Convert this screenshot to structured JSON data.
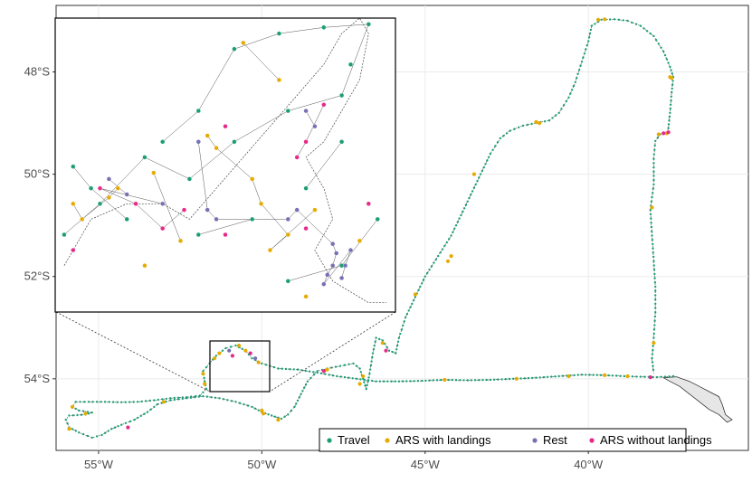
{
  "map": {
    "x_ticks": [
      {
        "label": "55°W",
        "lon": -55
      },
      {
        "label": "50°W",
        "lon": -50
      },
      {
        "label": "45°W",
        "lon": -45
      },
      {
        "label": "40°W",
        "lon": -40
      }
    ],
    "y_ticks": [
      {
        "label": "48°S",
        "lat": -48
      },
      {
        "label": "50°S",
        "lat": -50
      },
      {
        "label": "52°S",
        "lat": -52
      },
      {
        "label": "54°S",
        "lat": -54
      }
    ],
    "extent": {
      "lon_min": -56.3,
      "lon_max": -35.1,
      "lat_min": -55.4,
      "lat_max": -46.7
    },
    "colors": {
      "travel": "#1b9e77",
      "ars_landings": "#e6ab02",
      "rest": "#7570b3",
      "ars_no_landings": "#e7298a",
      "track_line": "#333333",
      "land_fill": "#e6e6e6",
      "grid": "#ebebeb"
    },
    "legend": [
      {
        "key": "travel",
        "label": "Travel"
      },
      {
        "key": "ars_landings",
        "label": "ARS with landings"
      },
      {
        "key": "rest",
        "label": "Rest"
      },
      {
        "key": "ars_no_landings",
        "label": "ARS without landings"
      }
    ],
    "inset_extent": {
      "lon_min": -51.6,
      "lon_max": -49.7,
      "lat_min": -53.85,
      "lat_max": -52.9
    },
    "track": [
      [
        -37.4,
        -53.95
      ],
      [
        -37.9,
        -53.97
      ],
      [
        -38.4,
        -53.96
      ],
      [
        -38.9,
        -53.95
      ],
      [
        -39.5,
        -53.93
      ],
      [
        -40.2,
        -53.92
      ],
      [
        -40.9,
        -53.95
      ],
      [
        -41.6,
        -53.98
      ],
      [
        -42.3,
        -54.0
      ],
      [
        -43.0,
        -54.02
      ],
      [
        -43.7,
        -54.03
      ],
      [
        -44.4,
        -54.02
      ],
      [
        -45.1,
        -54.04
      ],
      [
        -45.8,
        -54.05
      ],
      [
        -46.5,
        -54.05
      ],
      [
        -47.1,
        -54.0
      ],
      [
        -47.7,
        -53.95
      ],
      [
        -48.3,
        -53.88
      ],
      [
        -48.9,
        -53.82
      ],
      [
        -49.5,
        -53.8
      ],
      [
        -50.0,
        -53.7
      ],
      [
        -50.3,
        -53.6
      ],
      [
        -50.5,
        -53.45
      ],
      [
        -50.8,
        -53.35
      ],
      [
        -51.1,
        -53.4
      ],
      [
        -51.4,
        -53.55
      ],
      [
        -51.6,
        -53.7
      ],
      [
        -51.8,
        -53.85
      ],
      [
        -51.75,
        -54.05
      ],
      [
        -51.7,
        -54.2
      ],
      [
        -51.9,
        -54.33
      ],
      [
        -52.3,
        -54.36
      ],
      [
        -52.8,
        -54.38
      ],
      [
        -53.3,
        -54.42
      ],
      [
        -53.8,
        -54.45
      ],
      [
        -54.3,
        -54.46
      ],
      [
        -54.8,
        -54.45
      ],
      [
        -55.3,
        -54.45
      ],
      [
        -55.7,
        -54.45
      ],
      [
        -55.8,
        -54.55
      ],
      [
        -55.6,
        -54.62
      ],
      [
        -55.2,
        -54.66
      ],
      [
        -55.4,
        -54.7
      ],
      [
        -55.9,
        -54.72
      ],
      [
        -56.0,
        -54.8
      ],
      [
        -55.9,
        -54.95
      ],
      [
        -55.6,
        -55.05
      ],
      [
        -55.2,
        -55.15
      ],
      [
        -54.9,
        -55.1
      ],
      [
        -54.6,
        -54.98
      ],
      [
        -54.3,
        -54.9
      ],
      [
        -53.9,
        -54.8
      ],
      [
        -53.5,
        -54.65
      ],
      [
        -53.2,
        -54.5
      ],
      [
        -52.8,
        -54.42
      ],
      [
        -52.3,
        -54.38
      ],
      [
        -51.8,
        -54.34
      ],
      [
        -51.3,
        -54.38
      ],
      [
        -50.8,
        -54.45
      ],
      [
        -50.3,
        -54.55
      ],
      [
        -50.0,
        -54.65
      ],
      [
        -49.7,
        -54.72
      ],
      [
        -49.4,
        -54.78
      ],
      [
        -49.2,
        -54.7
      ],
      [
        -49.0,
        -54.55
      ],
      [
        -48.8,
        -54.3
      ],
      [
        -48.6,
        -54.05
      ],
      [
        -48.3,
        -53.85
      ],
      [
        -48.0,
        -53.8
      ],
      [
        -47.6,
        -53.75
      ],
      [
        -47.2,
        -53.7
      ],
      [
        -47.0,
        -53.8
      ],
      [
        -46.9,
        -54.0
      ],
      [
        -46.8,
        -54.2
      ],
      [
        -46.7,
        -53.9
      ],
      [
        -46.6,
        -53.5
      ],
      [
        -46.5,
        -53.2
      ],
      [
        -46.3,
        -53.25
      ],
      [
        -46.1,
        -53.45
      ],
      [
        -45.9,
        -53.5
      ],
      [
        -45.8,
        -53.2
      ],
      [
        -45.6,
        -52.8
      ],
      [
        -45.3,
        -52.4
      ],
      [
        -45.0,
        -52.0
      ],
      [
        -44.6,
        -51.6
      ],
      [
        -44.2,
        -51.2
      ],
      [
        -43.9,
        -50.8
      ],
      [
        -43.6,
        -50.4
      ],
      [
        -43.3,
        -50.0
      ],
      [
        -43.0,
        -49.6
      ],
      [
        -42.7,
        -49.3
      ],
      [
        -42.4,
        -49.15
      ],
      [
        -42.0,
        -49.05
      ],
      [
        -41.6,
        -49.0
      ],
      [
        -41.2,
        -48.95
      ],
      [
        -40.9,
        -48.8
      ],
      [
        -40.6,
        -48.5
      ],
      [
        -40.4,
        -48.2
      ],
      [
        -40.2,
        -47.8
      ],
      [
        -40.0,
        -47.4
      ],
      [
        -39.9,
        -47.1
      ],
      [
        -39.6,
        -46.98
      ],
      [
        -39.2,
        -46.97
      ],
      [
        -38.8,
        -47.0
      ],
      [
        -38.4,
        -47.1
      ],
      [
        -38.0,
        -47.3
      ],
      [
        -37.7,
        -47.6
      ],
      [
        -37.5,
        -47.9
      ],
      [
        -37.4,
        -48.1
      ],
      [
        -37.45,
        -48.4
      ],
      [
        -37.5,
        -48.8
      ],
      [
        -37.55,
        -49.1
      ],
      [
        -37.6,
        -49.2
      ],
      [
        -37.8,
        -49.22
      ],
      [
        -37.95,
        -49.35
      ],
      [
        -38.0,
        -49.7
      ],
      [
        -38.0,
        -50.2
      ],
      [
        -38.1,
        -50.7
      ],
      [
        -38.05,
        -51.2
      ],
      [
        -38.0,
        -51.7
      ],
      [
        -37.95,
        -52.2
      ],
      [
        -37.95,
        -52.7
      ],
      [
        -38.0,
        -53.2
      ],
      [
        -38.05,
        -53.6
      ],
      [
        -38.0,
        -53.9
      ]
    ],
    "events": [
      {
        "cls": "ars_landings",
        "lon": -39.7,
        "lat": -46.98
      },
      {
        "cls": "ars_landings",
        "lon": -39.5,
        "lat": -46.97
      },
      {
        "cls": "ars_landings",
        "lon": -37.5,
        "lat": -48.1
      },
      {
        "cls": "ars_landings",
        "lon": -37.45,
        "lat": -48.12
      },
      {
        "cls": "ars_landings",
        "lon": -37.6,
        "lat": -49.2
      },
      {
        "cls": "ars_no_landings",
        "lon": -37.7,
        "lat": -49.2
      },
      {
        "cls": "ars_landings",
        "lon": -37.85,
        "lat": -49.22
      },
      {
        "cls": "ars_no_landings",
        "lon": -37.55,
        "lat": -49.18
      },
      {
        "cls": "ars_landings",
        "lon": -38.05,
        "lat": -50.65
      },
      {
        "cls": "ars_landings",
        "lon": -38.0,
        "lat": -53.3
      },
      {
        "cls": "ars_landings",
        "lon": -41.5,
        "lat": -49.0
      },
      {
        "cls": "ars_landings",
        "lon": -41.6,
        "lat": -48.98
      },
      {
        "cls": "ars_landings",
        "lon": -43.5,
        "lat": -50.0
      },
      {
        "cls": "ars_landings",
        "lon": -44.3,
        "lat": -51.7
      },
      {
        "cls": "ars_landings",
        "lon": -44.2,
        "lat": -51.6
      },
      {
        "cls": "ars_landings",
        "lon": -45.3,
        "lat": -52.35
      },
      {
        "cls": "ars_no_landings",
        "lon": -46.2,
        "lat": -53.45
      },
      {
        "cls": "ars_landings",
        "lon": -46.3,
        "lat": -53.3
      },
      {
        "cls": "ars_landings",
        "lon": -46.9,
        "lat": -53.95
      },
      {
        "cls": "ars_landings",
        "lon": -47.0,
        "lat": -54.1
      },
      {
        "cls": "ars_landings",
        "lon": -44.4,
        "lat": -54.02
      },
      {
        "cls": "ars_landings",
        "lon": -42.2,
        "lat": -54.0
      },
      {
        "cls": "ars_landings",
        "lon": -40.6,
        "lat": -53.95
      },
      {
        "cls": "ars_landings",
        "lon": -39.5,
        "lat": -53.93
      },
      {
        "cls": "ars_landings",
        "lon": -38.8,
        "lat": -53.95
      },
      {
        "cls": "ars_no_landings",
        "lon": -38.1,
        "lat": -53.97
      },
      {
        "cls": "ars_no_landings",
        "lon": -48.1,
        "lat": -53.85
      },
      {
        "cls": "ars_landings",
        "lon": -48.0,
        "lat": -53.82
      },
      {
        "cls": "ars_landings",
        "lon": -51.8,
        "lat": -53.9
      },
      {
        "cls": "ars_landings",
        "lon": -51.75,
        "lat": -54.1
      },
      {
        "cls": "ars_landings",
        "lon": -50.0,
        "lat": -54.62
      },
      {
        "cls": "ars_landings",
        "lon": -49.95,
        "lat": -54.68
      },
      {
        "cls": "ars_landings",
        "lon": -49.5,
        "lat": -54.8
      },
      {
        "cls": "ars_landings",
        "lon": -53.0,
        "lat": -54.45
      },
      {
        "cls": "ars_landings",
        "lon": -55.4,
        "lat": -54.68
      },
      {
        "cls": "ars_landings",
        "lon": -55.8,
        "lat": -54.55
      },
      {
        "cls": "ars_no_landings",
        "lon": -54.1,
        "lat": -54.95
      },
      {
        "cls": "ars_landings",
        "lon": -55.9,
        "lat": -54.98
      },
      {
        "cls": "ars_landings",
        "lon": -51.3,
        "lat": -53.5
      },
      {
        "cls": "rest",
        "lon": -51.0,
        "lat": -53.45
      },
      {
        "cls": "ars_no_landings",
        "lon": -50.9,
        "lat": -53.55
      },
      {
        "cls": "ars_landings",
        "lon": -50.5,
        "lat": -53.45
      },
      {
        "cls": "ars_no_landings",
        "lon": -50.35,
        "lat": -53.5
      },
      {
        "cls": "rest",
        "lon": -50.2,
        "lat": -53.6
      },
      {
        "cls": "ars_landings",
        "lon": -50.1,
        "lat": -53.68
      },
      {
        "cls": "ars_landings",
        "lon": -50.7,
        "lat": -53.35
      },
      {
        "cls": "ars_landings",
        "lon": -51.45,
        "lat": -53.6
      }
    ],
    "inset_track": [
      [
        -51.55,
        -53.7
      ],
      [
        -51.4,
        -53.55
      ],
      [
        -51.2,
        -53.5
      ],
      [
        -51.0,
        -53.5
      ],
      [
        -50.85,
        -53.55
      ],
      [
        -50.7,
        -53.45
      ],
      [
        -50.55,
        -53.35
      ],
      [
        -50.4,
        -53.25
      ],
      [
        -50.25,
        -53.15
      ],
      [
        -50.1,
        -53.05
      ],
      [
        -50.0,
        -52.95
      ],
      [
        -49.9,
        -52.9
      ],
      [
        -49.85,
        -52.95
      ],
      [
        -49.9,
        -53.1
      ],
      [
        -50.0,
        -53.2
      ],
      [
        -50.1,
        -53.3
      ],
      [
        -50.2,
        -53.35
      ],
      [
        -50.1,
        -53.45
      ],
      [
        -50.05,
        -53.55
      ],
      [
        -50.15,
        -53.65
      ],
      [
        -50.05,
        -53.75
      ],
      [
        -49.85,
        -53.82
      ],
      [
        -49.75,
        -53.82
      ]
    ],
    "inset_events": [
      {
        "cls": "travel",
        "lon": -51.5,
        "lat": -53.38
      },
      {
        "cls": "travel",
        "lon": -51.4,
        "lat": -53.45
      },
      {
        "cls": "travel",
        "lon": -51.2,
        "lat": -53.55
      },
      {
        "cls": "travel",
        "lon": -51.0,
        "lat": -53.3
      },
      {
        "cls": "travel",
        "lon": -50.8,
        "lat": -53.2
      },
      {
        "cls": "travel",
        "lon": -50.6,
        "lat": -53.0
      },
      {
        "cls": "travel",
        "lon": -50.35,
        "lat": -52.95
      },
      {
        "cls": "travel",
        "lon": -50.1,
        "lat": -52.93
      },
      {
        "cls": "travel",
        "lon": -49.85,
        "lat": -52.92
      },
      {
        "cls": "travel",
        "lon": -50.0,
        "lat": -53.15
      },
      {
        "cls": "travel",
        "lon": -50.3,
        "lat": -53.2
      },
      {
        "cls": "travel",
        "lon": -50.6,
        "lat": -53.3
      },
      {
        "cls": "travel",
        "lon": -50.85,
        "lat": -53.42
      },
      {
        "cls": "travel",
        "lon": -51.1,
        "lat": -53.35
      },
      {
        "cls": "travel",
        "lon": -51.35,
        "lat": -53.5
      },
      {
        "cls": "travel",
        "lon": -51.55,
        "lat": -53.6
      },
      {
        "cls": "travel",
        "lon": -50.2,
        "lat": -53.45
      },
      {
        "cls": "travel",
        "lon": -50.0,
        "lat": -53.3
      },
      {
        "cls": "travel",
        "lon": -50.5,
        "lat": -53.55
      },
      {
        "cls": "travel",
        "lon": -50.8,
        "lat": -53.6
      },
      {
        "cls": "travel",
        "lon": -50.3,
        "lat": -53.75
      },
      {
        "cls": "travel",
        "lon": -50.0,
        "lat": -53.7
      },
      {
        "cls": "travel",
        "lon": -49.8,
        "lat": -53.55
      },
      {
        "cls": "travel",
        "lon": -49.95,
        "lat": -53.05
      },
      {
        "cls": "ars_landings",
        "lon": -51.5,
        "lat": -53.5
      },
      {
        "cls": "ars_landings",
        "lon": -51.45,
        "lat": -53.55
      },
      {
        "cls": "ars_landings",
        "lon": -51.3,
        "lat": -53.48
      },
      {
        "cls": "ars_landings",
        "lon": -51.25,
        "lat": -53.45
      },
      {
        "cls": "ars_landings",
        "lon": -50.75,
        "lat": -53.28
      },
      {
        "cls": "ars_landings",
        "lon": -50.7,
        "lat": -53.32
      },
      {
        "cls": "ars_landings",
        "lon": -50.5,
        "lat": -53.42
      },
      {
        "cls": "ars_landings",
        "lon": -50.45,
        "lat": -53.5
      },
      {
        "cls": "ars_landings",
        "lon": -50.3,
        "lat": -53.6
      },
      {
        "cls": "ars_landings",
        "lon": -50.4,
        "lat": -53.65
      },
      {
        "cls": "ars_landings",
        "lon": -50.15,
        "lat": -53.52
      },
      {
        "cls": "ars_landings",
        "lon": -50.35,
        "lat": -53.1
      },
      {
        "cls": "ars_landings",
        "lon": -50.55,
        "lat": -52.98
      },
      {
        "cls": "ars_landings",
        "lon": -50.2,
        "lat": -53.8
      },
      {
        "cls": "ars_landings",
        "lon": -51.05,
        "lat": -53.4
      },
      {
        "cls": "ars_landings",
        "lon": -50.9,
        "lat": -53.62
      },
      {
        "cls": "ars_landings",
        "lon": -49.9,
        "lat": -53.62
      },
      {
        "cls": "ars_landings",
        "lon": -51.1,
        "lat": -53.7
      },
      {
        "cls": "rest",
        "lon": -51.3,
        "lat": -53.42
      },
      {
        "cls": "rest",
        "lon": -51.2,
        "lat": -53.47
      },
      {
        "cls": "rest",
        "lon": -50.8,
        "lat": -53.3
      },
      {
        "cls": "rest",
        "lon": -50.75,
        "lat": -53.52
      },
      {
        "cls": "rest",
        "lon": -50.7,
        "lat": -53.55
      },
      {
        "cls": "rest",
        "lon": -50.3,
        "lat": -53.55
      },
      {
        "cls": "rest",
        "lon": -50.25,
        "lat": -53.52
      },
      {
        "cls": "rest",
        "lon": -50.05,
        "lat": -53.63
      },
      {
        "cls": "rest",
        "lon": -50.03,
        "lat": -53.66
      },
      {
        "cls": "rest",
        "lon": -50.05,
        "lat": -53.7
      },
      {
        "cls": "rest",
        "lon": -50.08,
        "lat": -53.73
      },
      {
        "cls": "rest",
        "lon": -50.1,
        "lat": -53.76
      },
      {
        "cls": "rest",
        "lon": -49.95,
        "lat": -53.65
      },
      {
        "cls": "rest",
        "lon": -49.98,
        "lat": -53.7
      },
      {
        "cls": "rest",
        "lon": -50.0,
        "lat": -53.74
      },
      {
        "cls": "rest",
        "lon": -50.2,
        "lat": -53.2
      },
      {
        "cls": "rest",
        "lon": -50.15,
        "lat": -53.25
      },
      {
        "cls": "rest",
        "lon": -51.0,
        "lat": -53.5
      },
      {
        "cls": "ars_no_landings",
        "lon": -51.35,
        "lat": -53.45
      },
      {
        "cls": "ars_no_landings",
        "lon": -51.15,
        "lat": -53.5
      },
      {
        "cls": "ars_no_landings",
        "lon": -51.0,
        "lat": -53.58
      },
      {
        "cls": "ars_no_landings",
        "lon": -50.88,
        "lat": -53.52
      },
      {
        "cls": "ars_no_landings",
        "lon": -50.65,
        "lat": -53.25
      },
      {
        "cls": "ars_no_landings",
        "lon": -50.1,
        "lat": -53.18
      },
      {
        "cls": "ars_no_landings",
        "lon": -50.2,
        "lat": -53.3
      },
      {
        "cls": "ars_no_landings",
        "lon": -50.25,
        "lat": -53.35
      },
      {
        "cls": "ars_no_landings",
        "lon": -49.85,
        "lat": -53.5
      },
      {
        "cls": "ars_no_landings",
        "lon": -50.65,
        "lat": -53.6
      },
      {
        "cls": "ars_no_landings",
        "lon": -51.5,
        "lat": -53.65
      },
      {
        "cls": "ars_no_landings",
        "lon": -50.2,
        "lat": -53.58
      }
    ]
  }
}
